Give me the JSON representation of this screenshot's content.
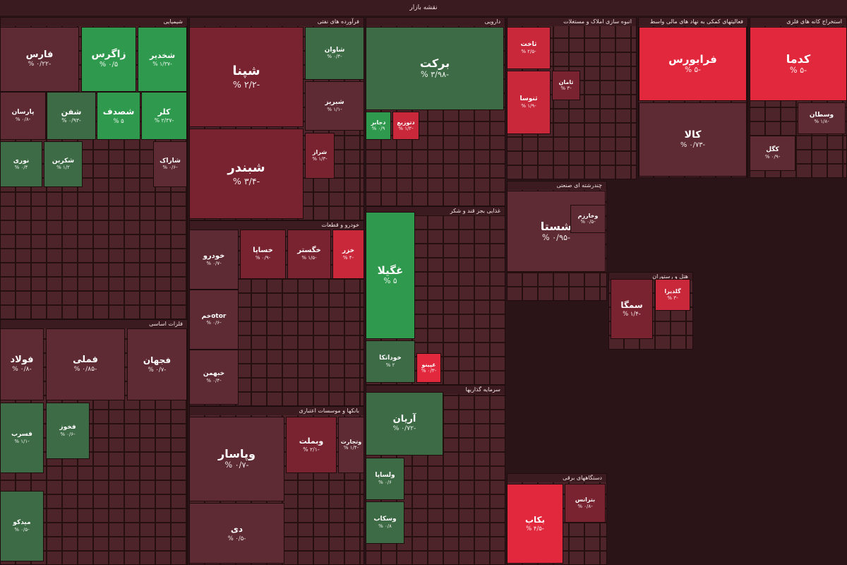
{
  "header": {
    "title": "نقشه بازار"
  },
  "sectors": [
    {
      "name": "شیمیایی",
      "tiles": [
        {
          "label": "فارس",
          "change": "-۰/۲۲ %"
        },
        {
          "label": "زاگرس",
          "change": "۰/۵ %"
        },
        {
          "label": "شخدیر",
          "change": "-۱/۳۷ %"
        },
        {
          "label": "پارسان",
          "change": "-۰/۸ %"
        },
        {
          "label": "شفن",
          "change": "-۰/۹۳ %"
        },
        {
          "label": "شصدف",
          "change": "۵ %"
        },
        {
          "label": "کلر",
          "change": "-۲/۳۷ %"
        },
        {
          "label": "نوری",
          "change": "۰/۴ %"
        },
        {
          "label": "شکربن",
          "change": "۱/۲ %"
        },
        {
          "label": "شاراک",
          "change": "-۰/۶ %"
        }
      ]
    },
    {
      "name": "فرآورده های نفتی",
      "tiles": [
        {
          "label": "شپنا",
          "change": "-۲/۲ %"
        },
        {
          "label": "شبندر",
          "change": "-۳/۴ %"
        },
        {
          "label": "شاوان",
          "change": "-۰/۴ %"
        },
        {
          "label": "شبریز",
          "change": "-۱/۱ %"
        },
        {
          "label": "شراز",
          "change": "-۱/۳ %"
        }
      ]
    },
    {
      "name": "دارویی",
      "tiles": [
        {
          "label": "برکت",
          "change": "-۳/۹۸ %"
        },
        {
          "label": "دتوزیع",
          "change": "-۱/۲ %"
        },
        {
          "label": "دجابر",
          "change": "۰/۹ %"
        }
      ]
    },
    {
      "name": "انبوه سازی املاک و مستغلات",
      "tiles": [
        {
          "label": "ثاخت",
          "change": "-۲/۵ %"
        },
        {
          "label": "ثنوسا",
          "change": "-۱/۹ %"
        },
        {
          "label": "ثامان",
          "change": "-۳ %"
        }
      ]
    },
    {
      "name": "فعالیتهای کمکی به نهاد های مالی واسط",
      "tiles": [
        {
          "label": "فرابورس",
          "change": "-۵ %"
        },
        {
          "label": "کالا",
          "change": "-۰/۷۳ %"
        }
      ]
    },
    {
      "name": "استخراج کانه های فلزی",
      "tiles": [
        {
          "label": "کدما",
          "change": "-۵ %"
        },
        {
          "label": "کگل",
          "change": "-۰/۹ %"
        },
        {
          "label": "وسطان",
          "change": "-۱/۸ %"
        }
      ]
    },
    {
      "name": "فلزات اساسی",
      "tiles": [
        {
          "label": "فولاد",
          "change": "-۰/۸ %"
        },
        {
          "label": "فملی",
          "change": "-۰/۸۵ %"
        },
        {
          "label": "فجهان",
          "change": "-۰/۷ %"
        },
        {
          "label": "فسرب",
          "change": "-۱/۱ %"
        },
        {
          "label": "فخوز",
          "change": "-۰/۶ %"
        },
        {
          "label": "میدکو",
          "change": "-۰/۵ %"
        }
      ]
    },
    {
      "name": "خودرو و قطعات",
      "tiles": [
        {
          "label": "خودرو",
          "change": "-۰/۷ %"
        },
        {
          "label": "خساپا",
          "change": "-۰/۹ %"
        },
        {
          "label": "خگستر",
          "change": "-۱/۵ %"
        },
        {
          "label": "خزر",
          "change": "-۴ %"
        },
        {
          "label": "خمotor",
          "change": "-۰/۶ %"
        },
        {
          "label": "خبهمن",
          "change": "-۰/۴ %"
        }
      ]
    },
    {
      "name": "بانکها و موسسات اعتباری",
      "tiles": [
        {
          "label": "وپاسار",
          "change": "-۰/۷ %"
        },
        {
          "label": "دی",
          "change": "-۰/۵ %"
        },
        {
          "label": "وبملت",
          "change": "-۲/۱ %"
        },
        {
          "label": "وتجارت",
          "change": "-۱/۴ %"
        }
      ]
    },
    {
      "name": "غذایی بجز قند و شکر",
      "tiles": [
        {
          "label": "غگیلا",
          "change": "۵ %"
        },
        {
          "label": "خوداتکا",
          "change": "۲ %"
        },
        {
          "label": "غپینو",
          "change": "-۰/۳ %"
        }
      ]
    },
    {
      "name": "سرمایه گذاریها",
      "tiles": [
        {
          "label": "آریان",
          "change": "-۰/۷۲ %"
        },
        {
          "label": "ولساپا",
          "change": "۰/۶ %"
        },
        {
          "label": "وسکاب",
          "change": "۰/۸ %"
        }
      ]
    },
    {
      "name": "چندرشته ای صنعتی",
      "tiles": [
        {
          "label": "شستا",
          "change": "-۰/۹۵ %"
        },
        {
          "label": "وخارزم",
          "change": "-۰/۵ %"
        }
      ]
    },
    {
      "name": "هتل و رستوران",
      "tiles": [
        {
          "label": "سمگا",
          "change": "-۱/۴ %"
        },
        {
          "label": "گلدیرا",
          "change": "-۳ %"
        }
      ]
    },
    {
      "name": "دستگاههای برقی",
      "tiles": [
        {
          "label": "بکاب",
          "change": "-۴/۵ %"
        },
        {
          "label": "بترانس",
          "change": "-۰/۸ %"
        }
      ]
    }
  ]
}
